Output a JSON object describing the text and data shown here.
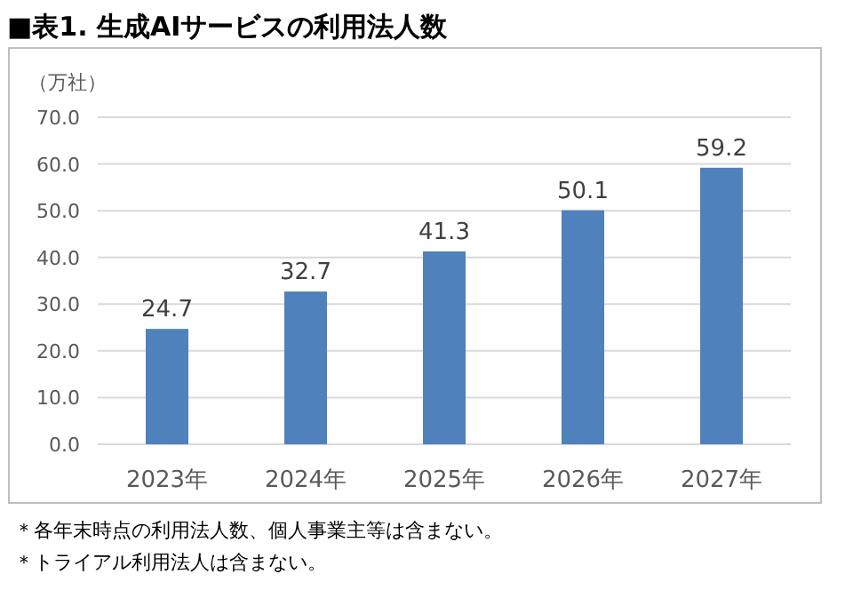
{
  "chart_data": {
    "type": "bar",
    "title": "■表1. 生成AIサービスの利用法人数",
    "ylabel": "（万社）",
    "categories": [
      "2023年",
      "2024年",
      "2025年",
      "2026年",
      "2027年"
    ],
    "values": [
      24.7,
      32.7,
      41.3,
      50.1,
      59.2
    ],
    "color": "#4f81bd",
    "ylim": [
      0,
      70
    ],
    "yticks": [
      {
        "value": 0,
        "label": "0.0"
      },
      {
        "value": 10,
        "label": "10.0"
      },
      {
        "value": 20,
        "label": "20.0"
      },
      {
        "value": 30,
        "label": "30.0"
      },
      {
        "value": 40,
        "label": "40.0"
      },
      {
        "value": 50,
        "label": "50.0"
      },
      {
        "value": 60,
        "label": "60.0"
      },
      {
        "value": 70,
        "label": "70.0"
      }
    ],
    "grid": "y",
    "data_labels": true,
    "annotations": [
      "＊各年末時点の利用法人数、個人事業主等は含まない。",
      "＊トライアル利用法人は含まない。"
    ]
  }
}
